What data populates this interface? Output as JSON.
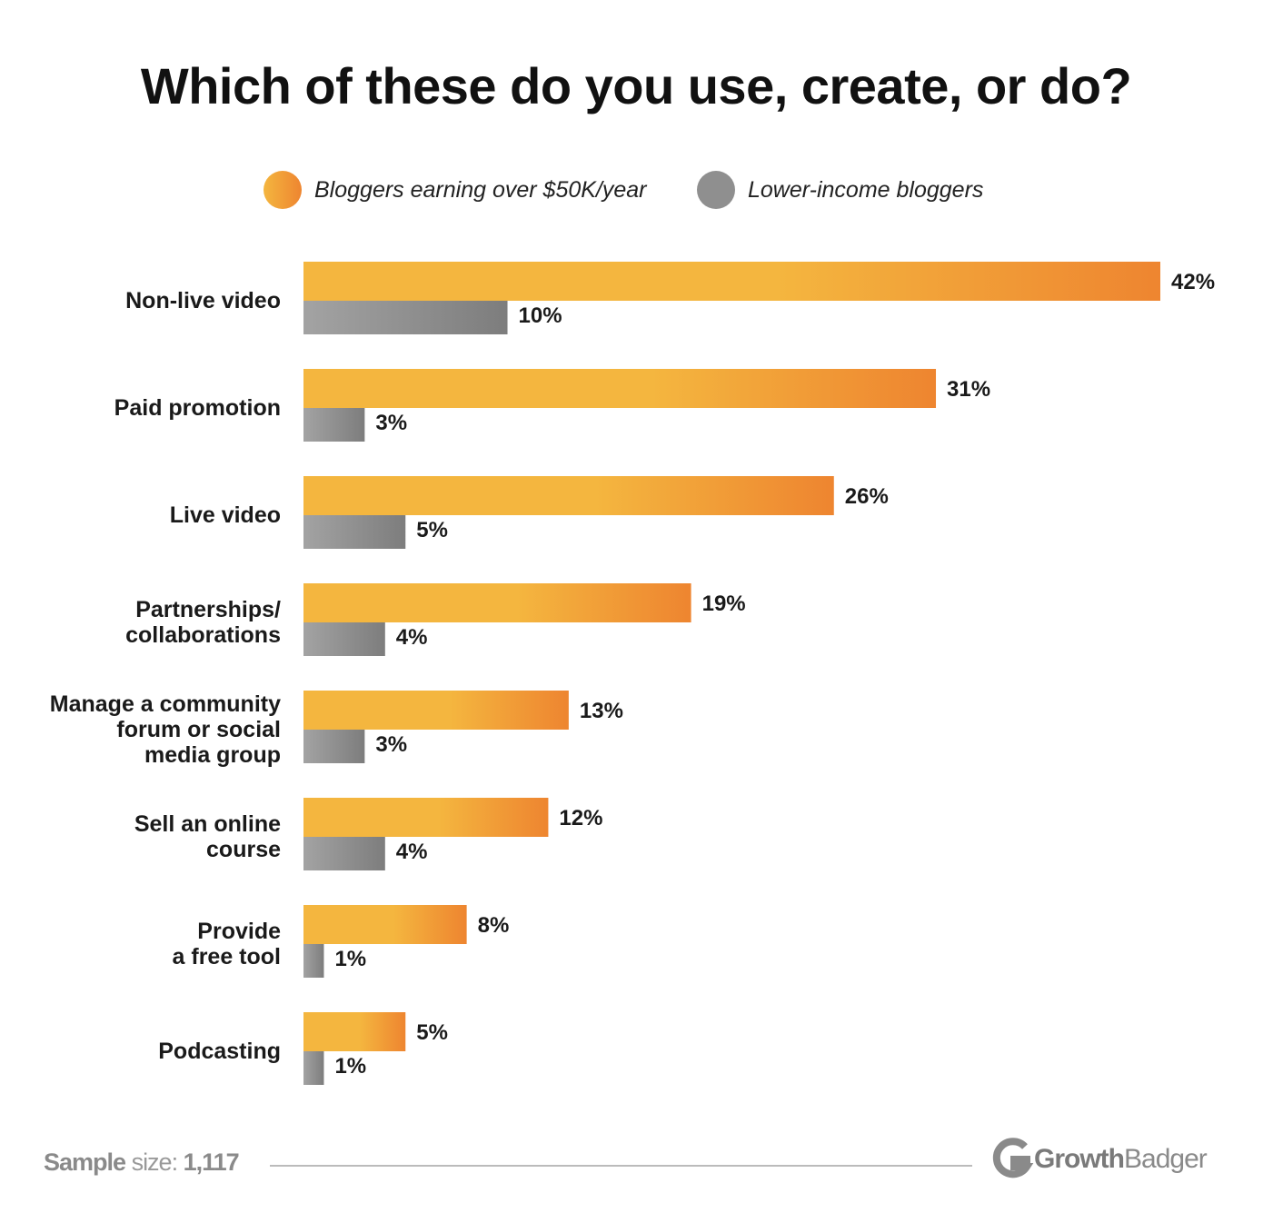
{
  "chart_data": {
    "type": "bar",
    "orientation": "horizontal",
    "title": "Which of these do you use, create, or do?",
    "categories": [
      "Non-live video",
      "Paid promotion",
      "Live video",
      "Partnerships/\ncollaborations",
      "Manage a community\nforum or social\nmedia group",
      "Sell an online\ncourse",
      "Provide\na free tool",
      "Podcasting"
    ],
    "series": [
      {
        "name": "Bloggers earning over $50K/year",
        "values": [
          42,
          31,
          26,
          19,
          13,
          12,
          8,
          5
        ],
        "color": "#f4b63f",
        "color_end": "#ee8530"
      },
      {
        "name": "Lower-income bloggers",
        "values": [
          10,
          3,
          5,
          4,
          3,
          4,
          1,
          1
        ],
        "color": "#a3a3a3",
        "color_end": "#7a7a7a"
      }
    ],
    "value_format": "percent",
    "legend_position": "top",
    "grid": false,
    "xlim": [
      0,
      42
    ]
  },
  "footer": {
    "sample_label": "Sample",
    "sample_suffix": "size:",
    "sample_value": "1,117",
    "brand_bold": "Growth",
    "brand_rest": "Badger"
  }
}
